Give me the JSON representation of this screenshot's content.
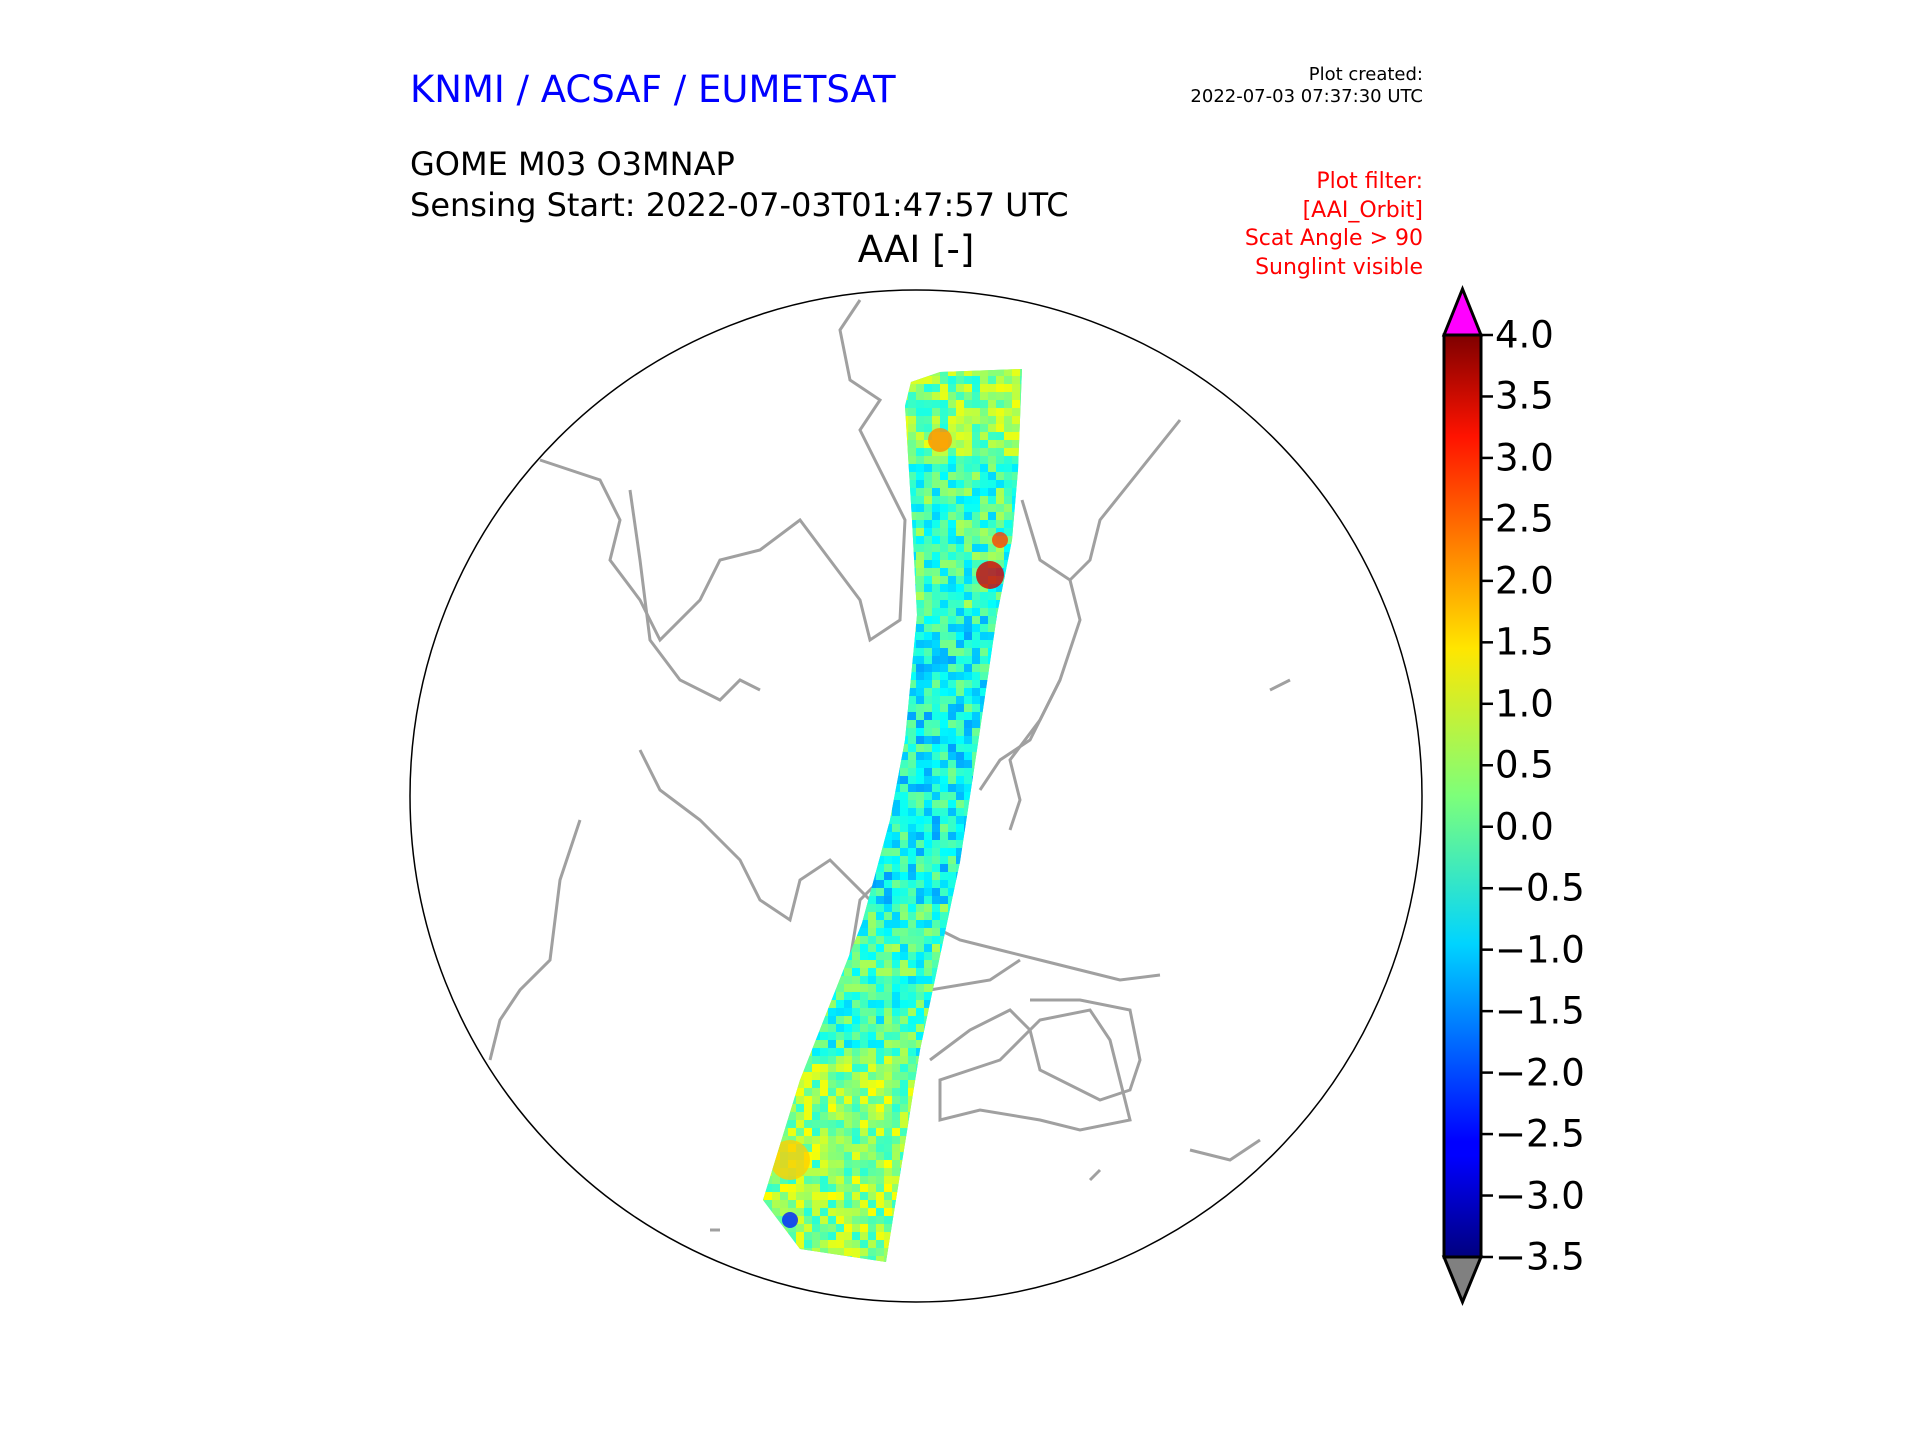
{
  "header": {
    "organization": "KNMI / ACSAF / EUMETSAT",
    "plot_created_label": "Plot created:",
    "plot_created": "2022-07-03 07:37:30 UTC",
    "product": "GOME M03 O3MNAP",
    "sensing_start": "Sensing Start: 2022-07-03T01:47:57 UTC",
    "quantity": "AAI [-]"
  },
  "filter": {
    "lines": [
      "Plot filter:",
      "[AAI_Orbit]",
      "Scat Angle > 90",
      "Sunglint visible"
    ]
  },
  "colorbar": {
    "min": -3.5,
    "max": 4.0,
    "ticks": [
      "4.0",
      "3.5",
      "3.0",
      "2.5",
      "2.0",
      "1.5",
      "1.0",
      "0.5",
      "0.0",
      "−0.5",
      "−1.0",
      "−1.5",
      "−2.0",
      "−2.5",
      "−3.0",
      "−3.5"
    ],
    "over_color": "#ff00ff",
    "under_color": "#808080",
    "colormap": "jet"
  },
  "map": {
    "coastline_color": "#a0a0a0",
    "projection": "orthographic"
  }
}
